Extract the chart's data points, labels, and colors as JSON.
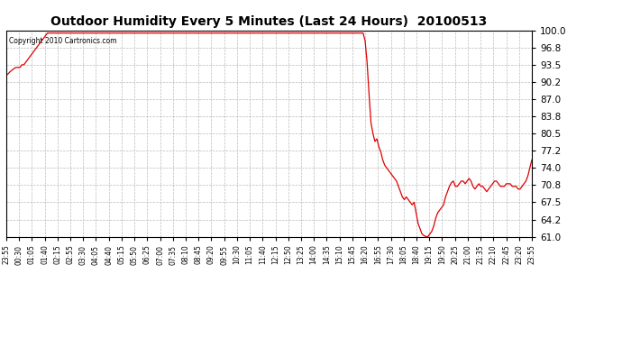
{
  "title": "Outdoor Humidity Every 5 Minutes (Last 24 Hours)  20100513",
  "copyright": "Copyright 2010 Cartronics.com",
  "line_color": "#dd0000",
  "bg_color": "#ffffff",
  "plot_bg_color": "#ffffff",
  "grid_color": "#bbbbbb",
  "ylim": [
    61.0,
    100.0
  ],
  "yticks": [
    61.0,
    64.2,
    67.5,
    70.8,
    74.0,
    77.2,
    80.5,
    83.8,
    87.0,
    90.2,
    93.5,
    96.8,
    100.0
  ],
  "xtick_labels": [
    "23:55",
    "00:30",
    "01:05",
    "01:40",
    "02:15",
    "02:55",
    "03:30",
    "04:05",
    "04:40",
    "05:15",
    "05:50",
    "06:25",
    "07:00",
    "07:35",
    "08:10",
    "08:45",
    "09:20",
    "09:55",
    "10:30",
    "11:05",
    "11:40",
    "12:15",
    "12:50",
    "13:25",
    "14:00",
    "14:35",
    "15:10",
    "15:45",
    "16:20",
    "16:55",
    "17:30",
    "18:05",
    "18:40",
    "19:15",
    "19:50",
    "20:25",
    "21:00",
    "21:35",
    "22:10",
    "22:45",
    "23:20",
    "23:55"
  ],
  "humidity_data": [
    91.5,
    91.8,
    92.2,
    92.5,
    92.8,
    93.0,
    93.0,
    93.0,
    93.5,
    93.5,
    94.0,
    94.5,
    95.0,
    95.5,
    96.0,
    96.5,
    97.0,
    97.5,
    98.0,
    98.5,
    99.0,
    99.5,
    99.5,
    99.5,
    99.5,
    99.5,
    99.5,
    99.5,
    99.5,
    99.5,
    99.5,
    99.5,
    99.5,
    99.5,
    99.5,
    99.5,
    99.5,
    99.5,
    99.5,
    99.5,
    99.5,
    99.5,
    99.5,
    99.5,
    99.5,
    99.5,
    99.5,
    99.5,
    99.5,
    99.5,
    99.5,
    99.5,
    99.5,
    99.5,
    99.5,
    99.5,
    99.5,
    99.5,
    99.5,
    99.5,
    99.5,
    99.5,
    99.5,
    99.5,
    99.5,
    99.5,
    99.5,
    99.5,
    99.5,
    99.5,
    99.5,
    99.5,
    99.5,
    99.5,
    99.5,
    99.5,
    99.5,
    99.5,
    99.5,
    99.5,
    99.5,
    99.5,
    99.5,
    99.5,
    99.5,
    99.5,
    99.5,
    99.5,
    99.5,
    99.5,
    99.5,
    99.5,
    99.5,
    99.5,
    99.5,
    99.5,
    99.5,
    99.5,
    99.5,
    99.5,
    99.5,
    99.5,
    99.5,
    99.5,
    99.5,
    99.5,
    99.5,
    99.5,
    99.5,
    99.5,
    99.5,
    99.5,
    99.5,
    99.5,
    99.5,
    99.5,
    99.5,
    99.5,
    99.5,
    99.5,
    99.5,
    99.5,
    99.5,
    99.5,
    99.5,
    99.5,
    99.5,
    99.5,
    99.5,
    99.5,
    99.5,
    99.5,
    99.5,
    99.5,
    99.5,
    99.5,
    99.5,
    99.5,
    99.5,
    99.5,
    99.5,
    99.5,
    99.5,
    99.5,
    99.5,
    99.5,
    99.5,
    99.5,
    99.5,
    99.5,
    99.5,
    99.5,
    99.5,
    99.5,
    99.5,
    99.5,
    99.5,
    99.5,
    99.5,
    99.5,
    99.5,
    99.5,
    99.5,
    99.5,
    99.5,
    99.5,
    99.5,
    99.5,
    99.5,
    99.5,
    99.5,
    99.5,
    99.5,
    99.5,
    99.5,
    99.5,
    99.5,
    99.5,
    99.5,
    99.5,
    99.5,
    99.5,
    99.5,
    98.0,
    94.0,
    88.0,
    82.5,
    80.5,
    79.0,
    79.5,
    78.0,
    77.0,
    75.5,
    74.5,
    74.0,
    73.5,
    73.0,
    72.5,
    72.0,
    71.5,
    70.5,
    69.5,
    68.5,
    68.0,
    68.5,
    68.0,
    67.5,
    67.0,
    67.5,
    65.5,
    63.5,
    62.5,
    61.5,
    61.2,
    61.0,
    61.0,
    61.5,
    62.0,
    63.0,
    64.5,
    65.5,
    66.0,
    66.5,
    67.0,
    68.5,
    69.5,
    70.5,
    71.2,
    71.5,
    70.5,
    70.5,
    71.0,
    71.5,
    71.5,
    71.0,
    71.5,
    72.0,
    71.5,
    70.5,
    70.0,
    70.5,
    71.0,
    70.5,
    70.5,
    70.0,
    69.5,
    70.0,
    70.5,
    71.0,
    71.5,
    71.5,
    71.0,
    70.5,
    70.5,
    70.5,
    71.0,
    71.0,
    71.0,
    70.5,
    70.5,
    70.5,
    70.0,
    70.0,
    70.5,
    71.0,
    71.5,
    72.5,
    74.0,
    75.5
  ]
}
